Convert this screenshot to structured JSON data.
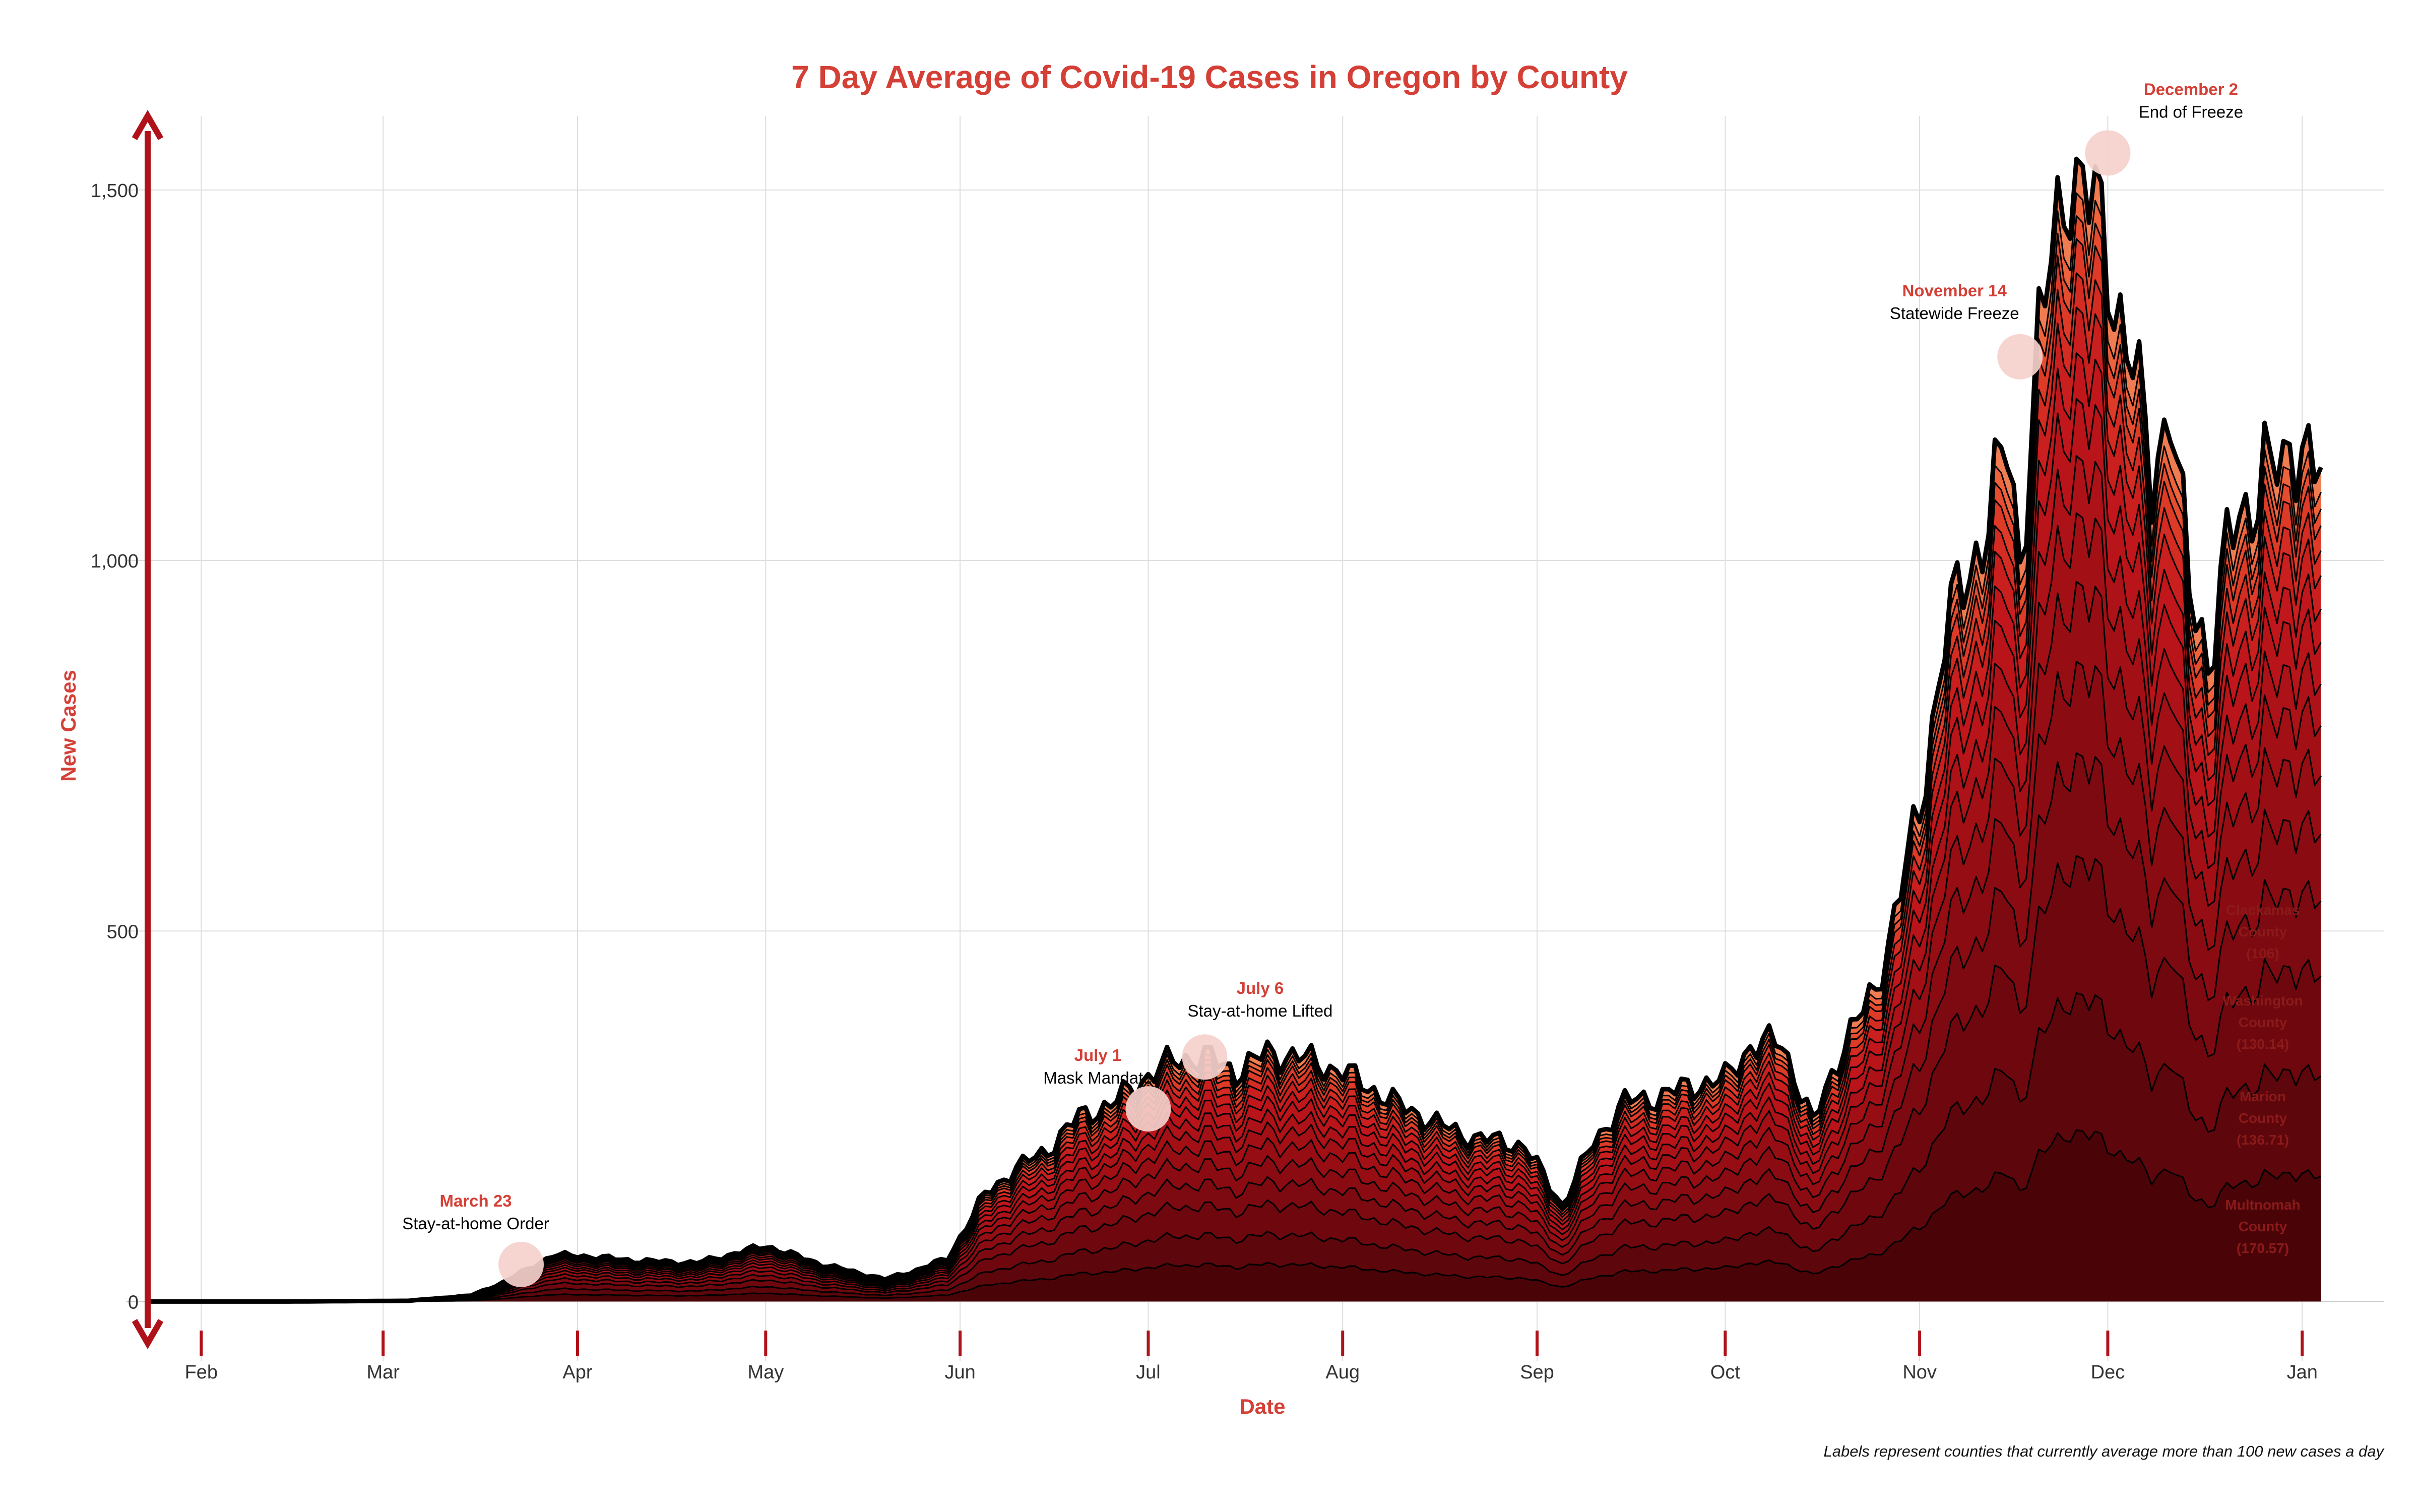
{
  "chart_data": {
    "type": "area",
    "title": "7 Day Average of Covid-19 Cases in Oregon by County",
    "xlabel": "Date",
    "ylabel": "New Cases",
    "caption": "Labels represent counties that currently average more than 100 new cases a day",
    "x_range": [
      "2020-01-20",
      "2021-01-14"
    ],
    "ylim": [
      -80,
      1600
    ],
    "y_ticks": [
      {
        "value": 0,
        "label": "0"
      },
      {
        "value": 500,
        "label": "500"
      },
      {
        "value": 1000,
        "label": "1,000"
      },
      {
        "value": 1500,
        "label": "1,500"
      }
    ],
    "x_ticks": [
      {
        "date": "2020-02-01",
        "label": "Feb"
      },
      {
        "date": "2020-03-01",
        "label": "Mar"
      },
      {
        "date": "2020-04-01",
        "label": "Apr"
      },
      {
        "date": "2020-05-01",
        "label": "May"
      },
      {
        "date": "2020-06-01",
        "label": "Jun"
      },
      {
        "date": "2020-07-01",
        "label": "Jul"
      },
      {
        "date": "2020-08-01",
        "label": "Aug"
      },
      {
        "date": "2020-09-01",
        "label": "Sep"
      },
      {
        "date": "2020-10-01",
        "label": "Oct"
      },
      {
        "date": "2020-11-01",
        "label": "Nov"
      },
      {
        "date": "2020-12-01",
        "label": "Dec"
      },
      {
        "date": "2021-01-01",
        "label": "Jan"
      }
    ],
    "grid": true,
    "total_series": {
      "dates": [
        "2020-01-23",
        "2020-02-15",
        "2020-03-05",
        "2020-03-15",
        "2020-03-20",
        "2020-03-25",
        "2020-03-28",
        "2020-04-01",
        "2020-04-10",
        "2020-04-20",
        "2020-05-01",
        "2020-05-10",
        "2020-05-20",
        "2020-05-25",
        "2020-05-30",
        "2020-06-05",
        "2020-06-10",
        "2020-06-15",
        "2020-06-20",
        "2020-06-25",
        "2020-07-01",
        "2020-07-05",
        "2020-07-10",
        "2020-07-15",
        "2020-07-20",
        "2020-07-25",
        "2020-08-01",
        "2020-08-10",
        "2020-08-20",
        "2020-08-30",
        "2020-09-05",
        "2020-09-10",
        "2020-09-15",
        "2020-09-20",
        "2020-09-25",
        "2020-10-01",
        "2020-10-05",
        "2020-10-10",
        "2020-10-15",
        "2020-10-20",
        "2020-10-25",
        "2020-11-01",
        "2020-11-05",
        "2020-11-10",
        "2020-11-15",
        "2020-11-17",
        "2020-11-20",
        "2020-11-25",
        "2020-11-29",
        "2020-12-01",
        "2020-12-05",
        "2020-12-08",
        "2020-12-11",
        "2020-12-14",
        "2020-12-17",
        "2020-12-20",
        "2020-12-23",
        "2020-12-26",
        "2020-12-29",
        "2021-01-01",
        "2021-01-04"
      ],
      "values": [
        0,
        0,
        1,
        8,
        25,
        48,
        62,
        62,
        55,
        52,
        75,
        50,
        30,
        42,
        58,
        145,
        180,
        205,
        250,
        265,
        305,
        325,
        330,
        310,
        335,
        330,
        310,
        265,
        225,
        210,
        130,
        215,
        270,
        275,
        290,
        300,
        345,
        350,
        240,
        350,
        420,
        660,
        900,
        1010,
        1150,
        1000,
        1300,
        1540,
        1470,
        1400,
        1270,
        1100,
        1230,
        950,
        870,
        1020,
        1050,
        1150,
        1100,
        1180,
        1120
      ]
    },
    "stack_layer_fractions": [
      0.15,
      0.27,
      0.39,
      0.48,
      0.56,
      0.63,
      0.69,
      0.74,
      0.79,
      0.83,
      0.87,
      0.9,
      0.93,
      0.95,
      0.97,
      1.0
    ],
    "colors": {
      "layers": [
        "#4a0408",
        "#5d060b",
        "#6e080e",
        "#7c0a10",
        "#8a0c12",
        "#960e14",
        "#a21016",
        "#ad1218",
        "#b8141a",
        "#c1171c",
        "#c9201f",
        "#d42b22",
        "#de3a28",
        "#e64c30",
        "#ee633c",
        "#f07d52"
      ],
      "outline": "#000000",
      "accent": "#d43f36",
      "arrow": "#b0121a",
      "marker": "#f5d0cc",
      "grid": "#dddddd",
      "county_label": "#8b1a1a"
    },
    "events": [
      {
        "date": "2020-03-23",
        "value": 50,
        "date_label": "March 23",
        "label": "Stay-at-home Order"
      },
      {
        "date": "2020-07-01",
        "value": 260,
        "date_label": "July 1",
        "label": "Mask Mandate"
      },
      {
        "date": "2020-07-10",
        "value": 330,
        "date_label": "July 6",
        "label": "Stay-at-home Lifted"
      },
      {
        "date": "2020-11-17",
        "value": 1275,
        "date_label": "November 14",
        "label": "Statewide Freeze"
      },
      {
        "date": "2020-12-01",
        "value": 1550,
        "date_label": "December 2",
        "label": "End of Freeze"
      }
    ],
    "county_labels": [
      {
        "lines": [
          "Clackamas",
          "County",
          "(106)"
        ]
      },
      {
        "lines": [
          "Washington",
          "County",
          "(130.14)"
        ]
      },
      {
        "lines": [
          "Marion",
          "County",
          "(136.71)"
        ]
      },
      {
        "lines": [
          "Multnomah",
          "County",
          "(170.57)"
        ]
      }
    ]
  }
}
